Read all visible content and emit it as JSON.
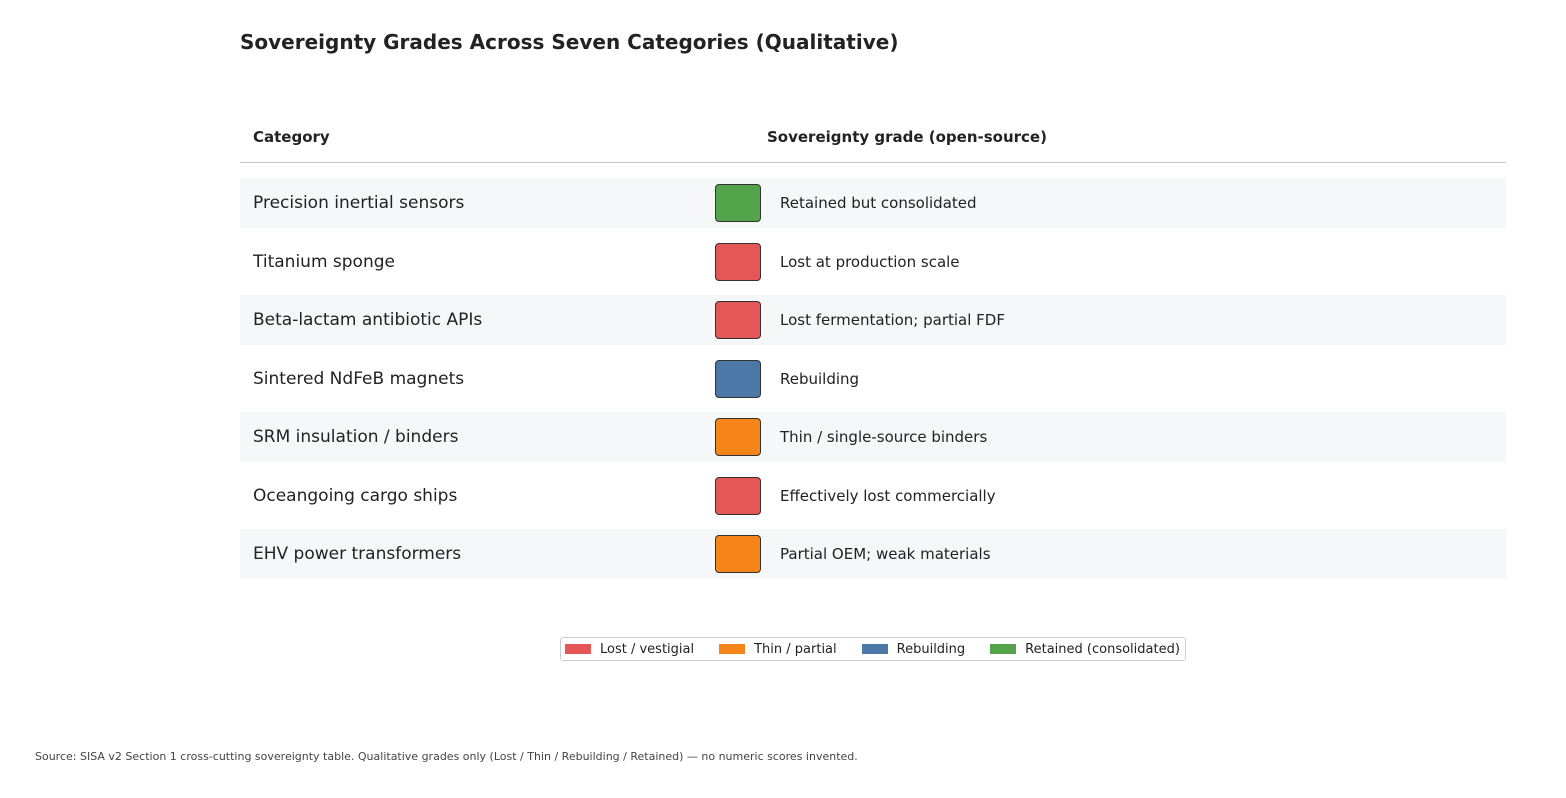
{
  "chart_data": {
    "type": "table",
    "title": "Sovereignty Grades Across Seven Categories (Qualitative)",
    "columns": [
      "Category",
      "Sovereignty grade (open-source)"
    ],
    "rows": [
      {
        "category": "Precision inertial sensors",
        "grade": "Retained but consolidated",
        "grade_class": "Retained (consolidated)",
        "color": "#54a44c"
      },
      {
        "category": "Titanium sponge",
        "grade": "Lost at production scale",
        "grade_class": "Lost / vestigial",
        "color": "#e45756"
      },
      {
        "category": "Beta-lactam antibiotic APIs",
        "grade": "Lost fermentation; partial FDF",
        "grade_class": "Lost / vestigial",
        "color": "#e45756"
      },
      {
        "category": "Sintered NdFeB magnets",
        "grade": "Rebuilding",
        "grade_class": "Rebuilding",
        "color": "#4c78a8"
      },
      {
        "category": "SRM insulation / binders",
        "grade": "Thin / single-source binders",
        "grade_class": "Thin / partial",
        "color": "#f58518"
      },
      {
        "category": "Oceangoing cargo ships",
        "grade": "Effectively lost commercially",
        "grade_class": "Lost / vestigial",
        "color": "#e45756"
      },
      {
        "category": "EHV power transformers",
        "grade": "Partial OEM; weak materials",
        "grade_class": "Thin / partial",
        "color": "#f58518"
      }
    ],
    "legend": [
      {
        "label": "Lost / vestigial",
        "color": "#e45756"
      },
      {
        "label": "Thin / partial",
        "color": "#f58518"
      },
      {
        "label": "Rebuilding",
        "color": "#4c78a8"
      },
      {
        "label": "Retained (consolidated)",
        "color": "#54a44c"
      }
    ],
    "legend_position": "bottom-center",
    "source": "Source: SISA v2 Section 1 cross-cutting sovereignty table. Qualitative grades only (Lost / Thin / Rebuilding / Retained) — no numeric scores invented."
  }
}
